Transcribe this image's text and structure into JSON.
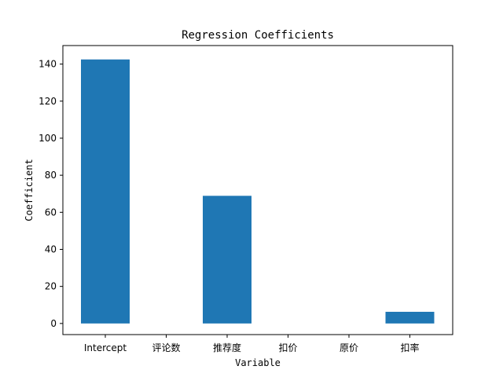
{
  "chart_data": {
    "type": "bar",
    "title": "Regression Coefficients",
    "xlabel": "Variable",
    "ylabel": "Coefficient",
    "categories": [
      "Intercept",
      "评论数",
      "推荐度",
      "扣价",
      "原价",
      "扣率"
    ],
    "values": [
      142.5,
      0.0,
      68.9,
      0.0,
      0.0,
      6.3
    ],
    "ylim": [
      -6,
      150
    ],
    "yticks": [
      0,
      20,
      40,
      60,
      80,
      100,
      120,
      140
    ],
    "bar_color": "#1f77b4",
    "grid": false
  }
}
